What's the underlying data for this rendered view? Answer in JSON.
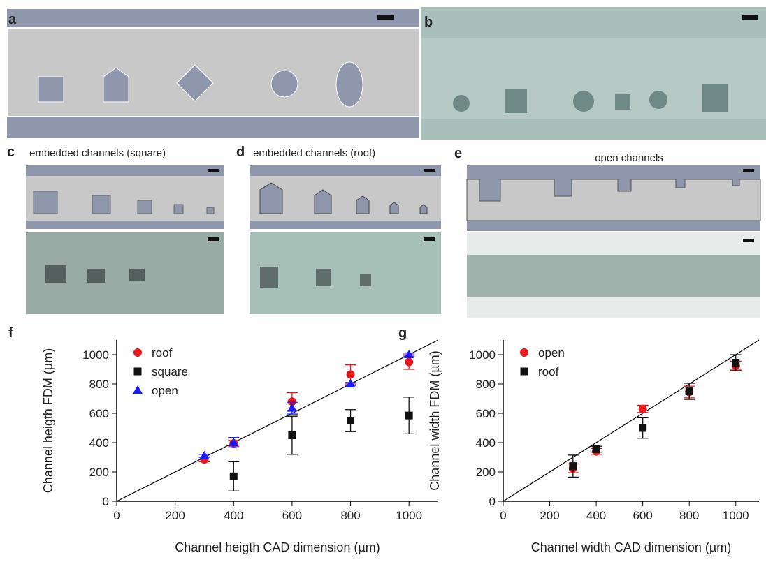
{
  "panels": {
    "labels": [
      "a",
      "b",
      "c",
      "d",
      "e",
      "f",
      "g"
    ],
    "captions": {
      "c": "embedded channels (square)",
      "d": "embedded channels (roof)",
      "e": "open channels"
    }
  },
  "chart_data": [
    {
      "type": "scatter",
      "x_label": "Channel heigth CAD dimension (µm)",
      "y_label": "Channel heigth FDM (µm)",
      "x": [
        300,
        400,
        600,
        800,
        1000
      ],
      "xlim": [
        0,
        1100
      ],
      "ylim": [
        0,
        1100
      ],
      "xticks": [
        0,
        200,
        400,
        600,
        800,
        1000
      ],
      "yticks": [
        0,
        200,
        400,
        600,
        800,
        1000
      ],
      "legend": "upper left",
      "series": [
        {
          "name": "roof",
          "color": "#e8191b",
          "marker": "circle",
          "values": [
            285,
            395,
            680,
            865,
            950
          ],
          "errors": [
            15,
            20,
            60,
            65,
            50
          ]
        },
        {
          "name": "square",
          "color": "#111111",
          "marker": "square",
          "values": [
            null,
            170,
            450,
            550,
            585
          ],
          "errors": [
            null,
            100,
            130,
            75,
            125
          ]
        },
        {
          "name": "open",
          "color": "#1a1aff",
          "marker": "triangle",
          "values": [
            310,
            400,
            635,
            800,
            1000
          ],
          "errors": [
            10,
            35,
            40,
            10,
            10
          ]
        }
      ]
    },
    {
      "type": "scatter",
      "x_label": "Channel width CAD dimension (µm)",
      "y_label": "Channel width FDM (µm)",
      "x": [
        300,
        400,
        600,
        800,
        1000
      ],
      "xlim": [
        0,
        1100
      ],
      "ylim": [
        0,
        1100
      ],
      "xticks": [
        0,
        200,
        400,
        600,
        800,
        1000
      ],
      "yticks": [
        0,
        200,
        400,
        600,
        800,
        1000
      ],
      "legend": "upper left",
      "series": [
        {
          "name": "open",
          "color": "#e8191b",
          "marker": "circle",
          "values": [
            225,
            340,
            630,
            745,
            925
          ],
          "errors": [
            30,
            20,
            25,
            40,
            30
          ]
        },
        {
          "name": "roof",
          "color": "#111111",
          "marker": "square",
          "values": [
            240,
            355,
            500,
            750,
            945
          ],
          "errors": [
            75,
            20,
            70,
            55,
            55
          ]
        }
      ]
    }
  ]
}
